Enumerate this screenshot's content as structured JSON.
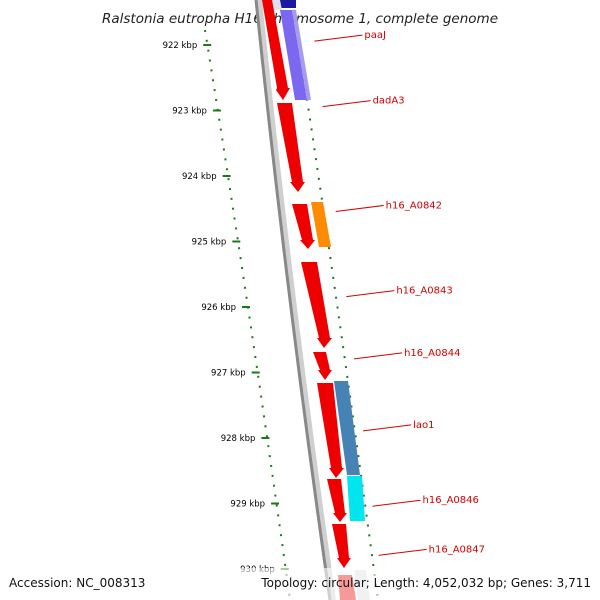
{
  "title": "Ralstonia eutropha H16 chromosome 1, complete genome",
  "footer": {
    "accession": "Accession: NC_008313",
    "summary": "Topology: circular; Length: 4,052,032 bp; Genes: 3,711"
  },
  "colors": {
    "ruler_tick": "#1a7a1a",
    "gene_label": "#d40000",
    "backbone": "#888888",
    "forward_gene": "#ee0000",
    "purple_feature": "#7b68ee",
    "orange_feature": "#ff8c00",
    "steelblue_feature": "#4682b4",
    "cyan_feature": "#00e5ee"
  },
  "ruler_ticks": [
    {
      "label": "922 kbp",
      "kbp": 922
    },
    {
      "label": "923 kbp",
      "kbp": 923
    },
    {
      "label": "924 kbp",
      "kbp": 924
    },
    {
      "label": "925 kbp",
      "kbp": 925
    },
    {
      "label": "926 kbp",
      "kbp": 926
    },
    {
      "label": "927 kbp",
      "kbp": 927
    },
    {
      "label": "928 kbp",
      "kbp": 928
    },
    {
      "label": "929 kbp",
      "kbp": 929
    },
    {
      "label": "930 kbp",
      "kbp": 930
    }
  ],
  "gene_labels": [
    {
      "name": "paaJ",
      "kbp": 921.85
    },
    {
      "name": "dadA3",
      "kbp": 922.85
    },
    {
      "name": "h16_A0842",
      "kbp": 924.45
    },
    {
      "name": "h16_A0843",
      "kbp": 925.75
    },
    {
      "name": "h16_A0844",
      "kbp": 926.7
    },
    {
      "name": "lao1",
      "kbp": 927.8
    },
    {
      "name": "h16_A0846",
      "kbp": 928.95
    },
    {
      "name": "h16_A0847",
      "kbp": 929.7
    }
  ]
}
